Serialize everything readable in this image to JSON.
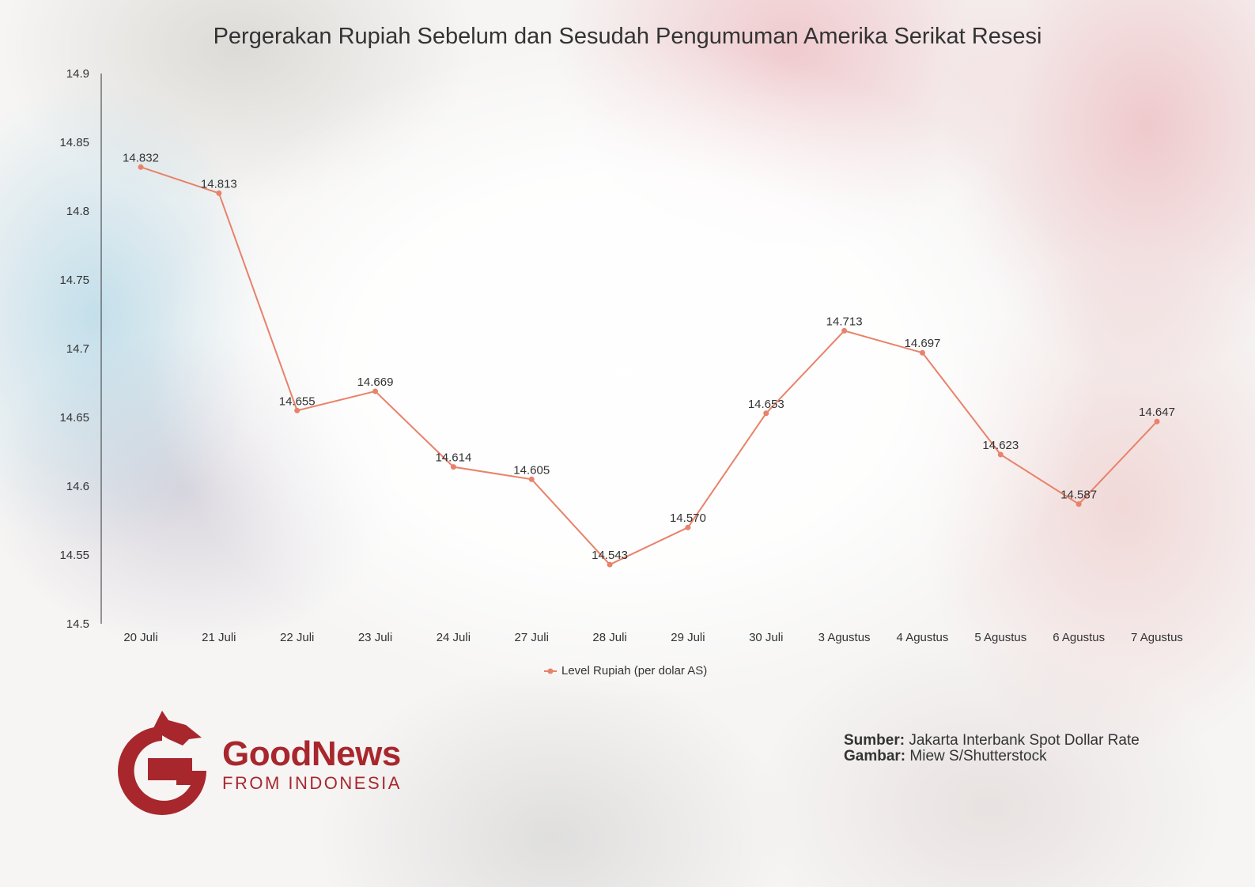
{
  "chart_data": {
    "type": "line",
    "title": "Pergerakan Rupiah Sebelum dan Sesudah Pengumuman Amerika Serikat Resesi",
    "categories": [
      "20 Juli",
      "21 Juli",
      "22 Juli",
      "23 Juli",
      "24 Juli",
      "27 Juli",
      "28 Juli",
      "29 Juli",
      "30 Juli",
      "3 Agustus",
      "4 Agustus",
      "5 Agustus",
      "6 Agustus",
      "7 Agustus"
    ],
    "series": [
      {
        "name": "Level Rupiah (per dolar AS)",
        "values": [
          14.832,
          14.813,
          14.655,
          14.669,
          14.614,
          14.605,
          14.543,
          14.57,
          14.653,
          14.713,
          14.697,
          14.623,
          14.587,
          14.647
        ],
        "labels": [
          "14.832",
          "14.813",
          "14.655",
          "14.669",
          "14.614",
          "14.605",
          "14.543",
          "14.570",
          "14.653",
          "14.713",
          "14.697",
          "14.623",
          "14.587",
          "14.647"
        ],
        "color": "#e8826a"
      }
    ],
    "ylim": [
      14.5,
      14.9
    ],
    "yticks": [
      "14.5",
      "14.55",
      "14.6",
      "14.65",
      "14.7",
      "14.75",
      "14.8",
      "14.85",
      "14.9"
    ],
    "grid": false,
    "legend": "bottom"
  },
  "footer": {
    "source_label": "Sumber:",
    "source_value": "Jakarta Interbank Spot Dollar Rate",
    "image_label": "Gambar:",
    "image_value": "Miew S/Shutterstock"
  },
  "logo": {
    "line1": "GoodNews",
    "line2": "FROM INDONESIA",
    "color": "#a8272d"
  }
}
